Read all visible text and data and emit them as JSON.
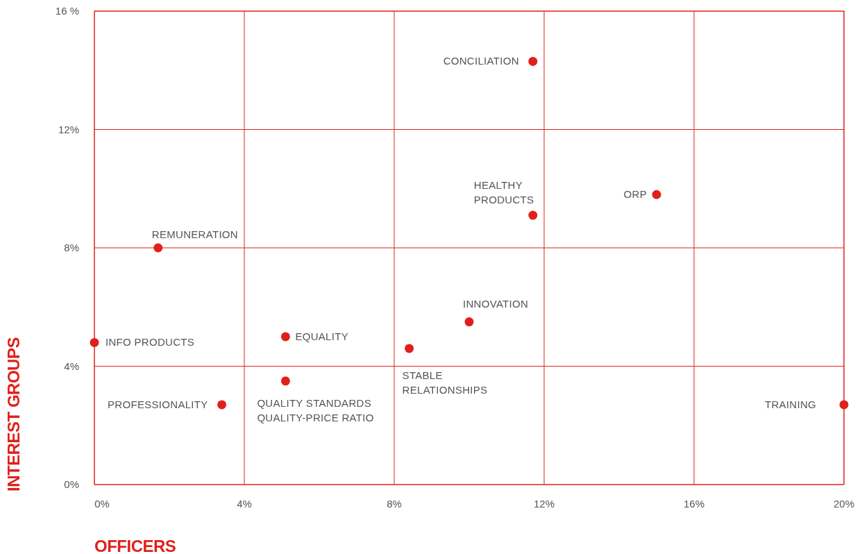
{
  "chart_data": {
    "type": "scatter",
    "xlabel": "OFFICERS",
    "ylabel": "INTEREST GROUPS",
    "xlim": [
      0,
      20
    ],
    "ylim": [
      0,
      16
    ],
    "xticks": [
      {
        "value": 0,
        "label": "0%"
      },
      {
        "value": 4,
        "label": "4%"
      },
      {
        "value": 8,
        "label": "8%"
      },
      {
        "value": 12,
        "label": "12%"
      },
      {
        "value": 16,
        "label": "16%"
      },
      {
        "value": 20,
        "label": "20%"
      }
    ],
    "yticks": [
      {
        "value": 0,
        "label": "0%"
      },
      {
        "value": 4,
        "label": "4%"
      },
      {
        "value": 8,
        "label": "8%"
      },
      {
        "value": 12,
        "label": "12%"
      },
      {
        "value": 16,
        "label": "16 %"
      }
    ],
    "grid": true,
    "marker": "circle",
    "series": [
      {
        "color": "#e0201b",
        "x": [
          11.7,
          11.7,
          15,
          1.7,
          10,
          0,
          5.1,
          8.4,
          5.1,
          3.4,
          20
        ],
        "values": [
          14.3,
          9.1,
          9.8,
          8.0,
          5.5,
          4.8,
          5.0,
          4.6,
          3.5,
          2.7,
          2.7
        ]
      }
    ],
    "annotations": [
      {
        "text": "CONCILIATION",
        "x": 11.7,
        "y": 14.3
      },
      {
        "text": "HEALTHY\nPRODUCTS",
        "x": 11.7,
        "y": 9.1
      },
      {
        "text": "ORP",
        "x": 15,
        "y": 9.8
      },
      {
        "text": "REMUNERATION",
        "x": 1.7,
        "y": 8.0
      },
      {
        "text": "INNOVATION",
        "x": 10,
        "y": 5.5
      },
      {
        "text": "INFO PRODUCTS",
        "x": 0,
        "y": 4.8
      },
      {
        "text": "EQUALITY",
        "x": 5.1,
        "y": 5.0
      },
      {
        "text": "STABLE\nRELATIONSHIPS",
        "x": 8.4,
        "y": 4.6
      },
      {
        "text": "QUALITY STANDARDS\nQUALITY-PRICE RATIO",
        "x": 5.1,
        "y": 3.5
      },
      {
        "text": "PROFESSIONALITY",
        "x": 3.4,
        "y": 2.7
      },
      {
        "text": "TRAINING",
        "x": 20,
        "y": 2.7
      }
    ]
  }
}
